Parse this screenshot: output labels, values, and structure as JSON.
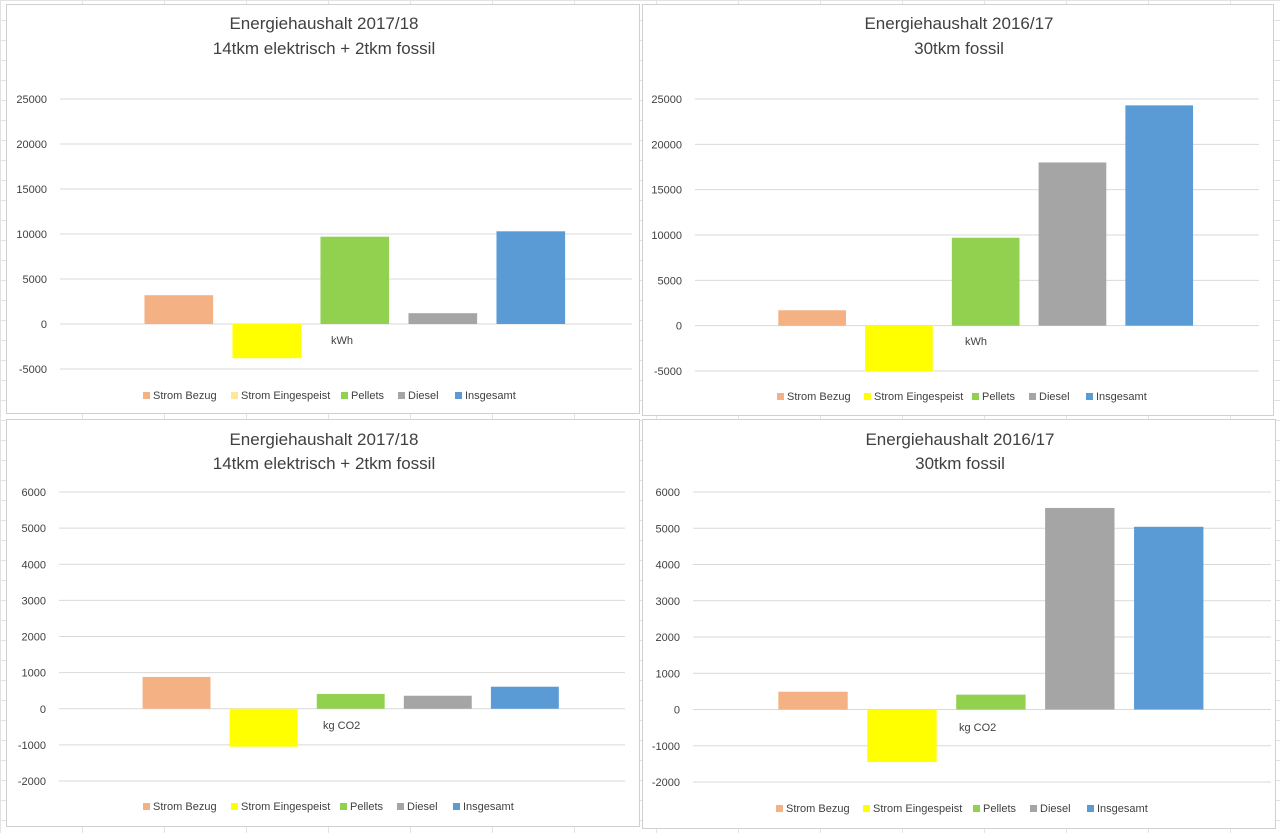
{
  "chart_data": [
    {
      "type": "bar",
      "title": "Energiehaushalt 2017/18",
      "subtitle": "14tkm elektrisch + 2tkm fossil",
      "categories": [
        "Strom Bezug",
        "Strom Eingespeist",
        "Pellets",
        "Diesel",
        "Insgesamt"
      ],
      "values": [
        3200,
        -3800,
        9700,
        1200,
        10300
      ],
      "colors": [
        "#f4b183",
        "#ffff00",
        "#92d050",
        "#a5a5a5",
        "#5b9bd5"
      ],
      "legend_colors": [
        "#f4b183",
        "#ffe699",
        "#92d050",
        "#a5a5a5",
        "#5b9bd5"
      ],
      "unit": "kWh",
      "ylim": [
        -5000,
        25000
      ],
      "yticks": [
        -5000,
        0,
        5000,
        10000,
        15000,
        20000,
        25000
      ],
      "ytick_labels": [
        "-5000",
        "0",
        "5000",
        "10000",
        "15000",
        "20000",
        "25000"
      ],
      "legend": "bottom",
      "grid": true
    },
    {
      "type": "bar",
      "title": "Energiehaushalt 2016/17",
      "subtitle": "30tkm fossil",
      "categories": [
        "Strom Bezug",
        "Strom Eingespeist",
        "Pellets",
        "Diesel",
        "Insgesamt"
      ],
      "values": [
        1700,
        -5000,
        9700,
        18000,
        24300
      ],
      "colors": [
        "#f4b183",
        "#ffff00",
        "#92d050",
        "#a5a5a5",
        "#5b9bd5"
      ],
      "legend_colors": [
        "#f4b183",
        "#ffff00",
        "#92d050",
        "#a5a5a5",
        "#5b9bd5"
      ],
      "unit": "kWh",
      "ylim": [
        -5000,
        25000
      ],
      "yticks": [
        -5000,
        0,
        5000,
        10000,
        15000,
        20000,
        25000
      ],
      "ytick_labels": [
        "-5000",
        "0",
        "5000",
        "10000",
        "15000",
        "20000",
        "25000"
      ],
      "legend": "bottom",
      "grid": true
    },
    {
      "type": "bar",
      "title": "Energiehaushalt 2017/18",
      "subtitle": "14tkm elektrisch + 2tkm fossil",
      "categories": [
        "Strom Bezug",
        "Strom Eingespeist",
        "Pellets",
        "Diesel",
        "Insgesamt"
      ],
      "values": [
        880,
        -1050,
        410,
        360,
        610
      ],
      "colors": [
        "#f4b183",
        "#ffff00",
        "#92d050",
        "#a5a5a5",
        "#5b9bd5"
      ],
      "legend_colors": [
        "#f4b183",
        "#ffff00",
        "#92d050",
        "#a5a5a5",
        "#5b9bd5"
      ],
      "unit": "kg CO2",
      "ylim": [
        -2000,
        6000
      ],
      "yticks": [
        -2000,
        -1000,
        0,
        1000,
        2000,
        3000,
        4000,
        5000,
        6000
      ],
      "ytick_labels": [
        "-2000",
        "-1000",
        "0",
        "1000",
        "2000",
        "3000",
        "4000",
        "5000",
        "6000"
      ],
      "legend": "bottom",
      "grid": true
    },
    {
      "type": "bar",
      "title": "Energiehaushalt 2016/17",
      "subtitle": "30tkm fossil",
      "categories": [
        "Strom Bezug",
        "Strom Eingespeist",
        "Pellets",
        "Diesel",
        "Insgesamt"
      ],
      "values": [
        490,
        -1450,
        410,
        5560,
        5040
      ],
      "colors": [
        "#f4b183",
        "#ffff00",
        "#92d050",
        "#a5a5a5",
        "#5b9bd5"
      ],
      "legend_colors": [
        "#f4b183",
        "#ffff00",
        "#92d050",
        "#a5a5a5",
        "#5b9bd5"
      ],
      "unit": "kg CO2",
      "ylim": [
        -2000,
        6000
      ],
      "yticks": [
        -2000,
        -1000,
        0,
        1000,
        2000,
        3000,
        4000,
        5000,
        6000
      ],
      "ytick_labels": [
        "-2000",
        "-1000",
        "0",
        "1000",
        "2000",
        "3000",
        "4000",
        "5000",
        "6000"
      ],
      "legend": "bottom",
      "grid": true
    }
  ]
}
